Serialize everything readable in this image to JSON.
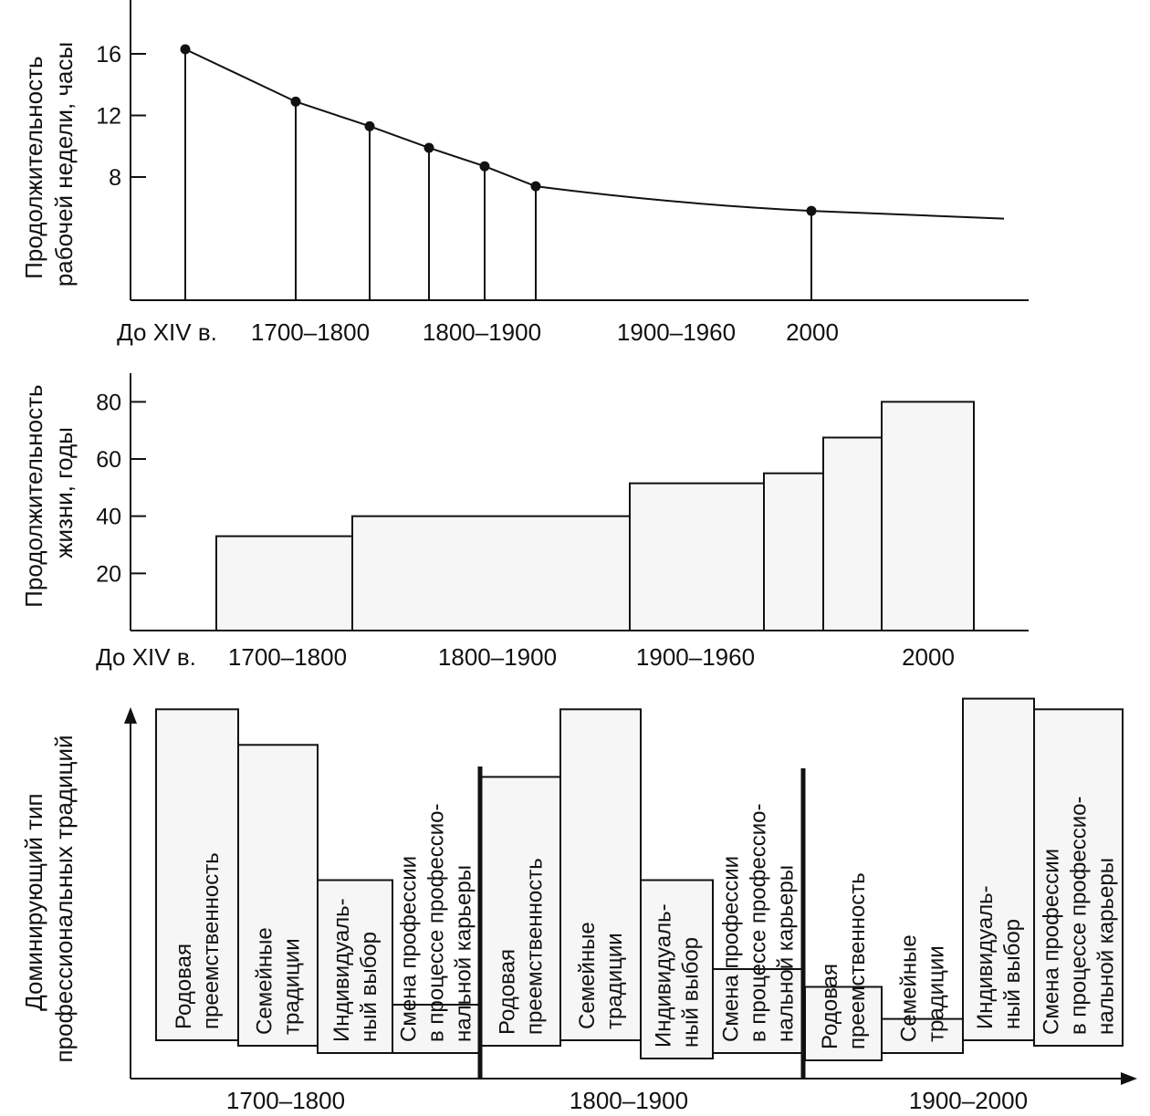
{
  "chart_data": [
    {
      "type": "line",
      "ylabel": [
        "Продолжительность",
        "рабочей недели, часы"
      ],
      "yticks": [
        8,
        12,
        16
      ],
      "ylim": [
        0,
        19.5
      ],
      "tick_labels": [
        "До XIV в.",
        "1700–1800",
        "1800–1900",
        "1900–1960",
        "2000"
      ],
      "points": [
        {
          "x": 1,
          "y": 16.3
        },
        {
          "x": 2,
          "y": 12.9
        },
        {
          "x": 3,
          "y": 11.3
        },
        {
          "x": 4,
          "y": 9.9
        },
        {
          "x": 5,
          "y": 8.7
        },
        {
          "x": 6,
          "y": 7.4
        },
        {
          "x": 7,
          "y": 5.8
        }
      ],
      "line_end": {
        "x": 8,
        "y": 5.3
      }
    },
    {
      "type": "bar",
      "ylabel": [
        "Продолжительность",
        "жизни, годы"
      ],
      "yticks": [
        20,
        40,
        60,
        80
      ],
      "ylim": [
        0,
        90
      ],
      "tick_labels": [
        "До XIV в.",
        "1700–1800",
        "1800–1900",
        "1900–1960",
        "2000"
      ],
      "values": [
        33,
        40,
        51.5,
        55,
        67.5,
        80
      ]
    },
    {
      "type": "bar",
      "ylabel": [
        "Доминирующий тип",
        "профессиональных традиций"
      ],
      "groups": [
        {
          "label": "1700–1800",
          "bars": [
            {
              "lines": [
                "Родовая",
                "преемственность"
              ],
              "level": 0.93
            },
            {
              "lines": [
                "Семейные",
                "традиции"
              ],
              "level": 0.83
            },
            {
              "lines": [
                "Индивидуаль-",
                "ный выбор"
              ],
              "level": 0.45
            },
            {
              "lines": [
                "Смена профессии",
                "в процессе профессио-",
                "нальной карьеры"
              ],
              "level": 0.1
            }
          ]
        },
        {
          "label": "1800–1900",
          "bars": [
            {
              "lines": [
                "Родовая",
                "преемственность"
              ],
              "level": 0.74
            },
            {
              "lines": [
                "Семейные",
                "традиции"
              ],
              "level": 0.93
            },
            {
              "lines": [
                "Индивидуаль-",
                "ный выбор"
              ],
              "level": 0.45
            },
            {
              "lines": [
                "Смена профессии",
                "в процессе профессио-",
                "нальной карьеры"
              ],
              "level": 0.2
            }
          ]
        },
        {
          "label": "1900–2000",
          "bars": [
            {
              "lines": [
                "Родовая",
                "преемственность"
              ],
              "level": 0.15
            },
            {
              "lines": [
                "Семейные",
                "традиции"
              ],
              "level": 0.06
            },
            {
              "lines": [
                "Индивидуаль-",
                "ный выбор"
              ],
              "level": 0.96
            },
            {
              "lines": [
                "Смена профессии",
                "в процессе профессио-",
                "нальной карьеры"
              ],
              "level": 0.93
            }
          ]
        }
      ]
    }
  ]
}
